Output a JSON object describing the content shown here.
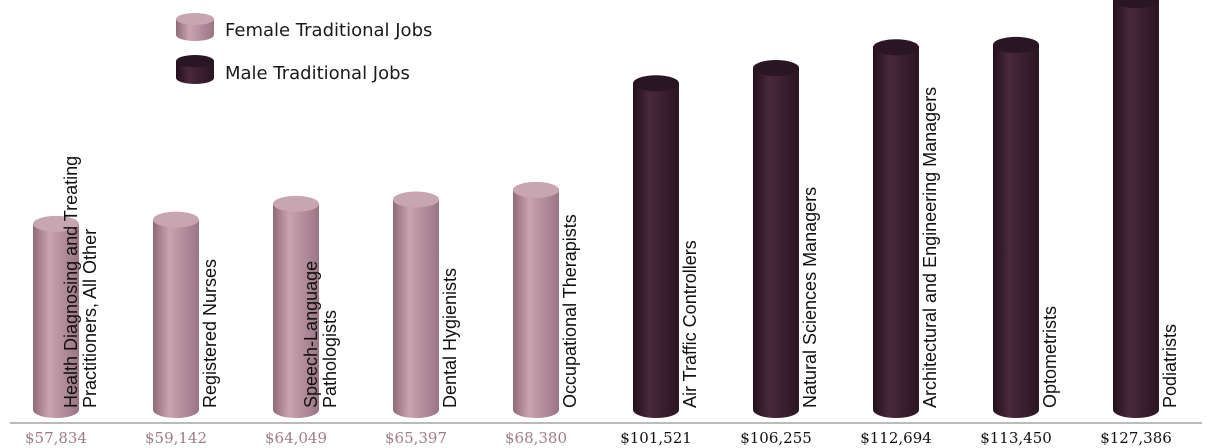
{
  "chart_data": {
    "type": "bar",
    "title": "",
    "xlabel": "",
    "ylabel": "",
    "ylim": [
      0,
      128000
    ],
    "grid": false,
    "legend_placement": "top-left",
    "series_colors": {
      "female": {
        "body": "#b48c99",
        "top": "#c8a6b1",
        "dark": "#8d6876"
      },
      "male": {
        "body": "#3d2133",
        "top": "#2a1523",
        "dark": "#27131f"
      }
    },
    "legend": [
      {
        "name": "Female Traditional Jobs",
        "group": "female"
      },
      {
        "name": "Male Traditional Jobs",
        "group": "male"
      }
    ],
    "bars": [
      {
        "label_lines": [
          "Health Diagnosing and Treating",
          "Practitioners, All Other"
        ],
        "value": 57834,
        "value_label": "$57,834",
        "group": "female"
      },
      {
        "label_lines": [
          "Registered Nurses"
        ],
        "value": 59142,
        "value_label": "$59,142",
        "group": "female"
      },
      {
        "label_lines": [
          "Speech-Language",
          "Pathologists"
        ],
        "value": 64049,
        "value_label": "$64,049",
        "group": "female"
      },
      {
        "label_lines": [
          "Dental Hygienists"
        ],
        "value": 65397,
        "value_label": "$65,397",
        "group": "female"
      },
      {
        "label_lines": [
          "Occupational Therapists"
        ],
        "value": 68380,
        "value_label": "$68,380",
        "group": "female"
      },
      {
        "label_lines": [
          "Air Traffic Controllers"
        ],
        "value": 101521,
        "value_label": "$101,521",
        "group": "male"
      },
      {
        "label_lines": [
          "Natural Sciences Managers"
        ],
        "value": 106255,
        "value_label": "$106,255",
        "group": "male"
      },
      {
        "label_lines": [
          "Architectural and Engineering Managers"
        ],
        "value": 112694,
        "value_label": "$112,694",
        "group": "male"
      },
      {
        "label_lines": [
          "Optometrists"
        ],
        "value": 113450,
        "value_label": "$113,450",
        "group": "male"
      },
      {
        "label_lines": [
          "Podiatrists"
        ],
        "value": 127386,
        "value_label": "$127,386",
        "group": "male"
      }
    ]
  }
}
